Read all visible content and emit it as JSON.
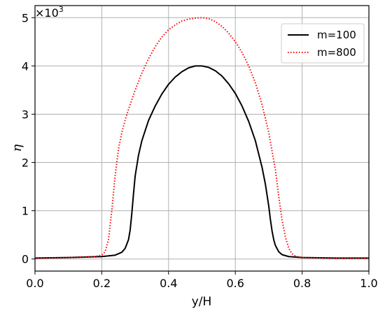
{
  "chart_data": {
    "type": "line",
    "xlabel": "y/H",
    "ylabel": "η",
    "y_multiplier": "×10",
    "y_multiplier_exp": "3",
    "xlim": [
      0.0,
      1.0
    ],
    "ylim": [
      -0.25,
      5.25
    ],
    "xticks": [
      0.0,
      0.2,
      0.4,
      0.6,
      0.8,
      1.0
    ],
    "xtick_labels": [
      "0.0",
      "0.2",
      "0.4",
      "0.6",
      "0.8",
      "1.0"
    ],
    "yticks": [
      0,
      1,
      2,
      3,
      4,
      5
    ],
    "ytick_labels": [
      "0",
      "1",
      "2",
      "3",
      "4",
      "5"
    ],
    "grid": true,
    "legend_position": "top-right",
    "series": [
      {
        "name": "m=100",
        "color": "#000000",
        "style": "solid",
        "x": [
          0.0,
          0.1,
          0.2,
          0.24,
          0.26,
          0.27,
          0.28,
          0.285,
          0.29,
          0.295,
          0.3,
          0.31,
          0.32,
          0.34,
          0.36,
          0.38,
          0.4,
          0.42,
          0.44,
          0.46,
          0.48,
          0.5,
          0.52,
          0.54,
          0.56,
          0.58,
          0.6,
          0.62,
          0.64,
          0.66,
          0.68,
          0.69,
          0.7,
          0.705,
          0.71,
          0.715,
          0.72,
          0.73,
          0.74,
          0.76,
          0.8,
          0.9,
          1.0
        ],
        "y": [
          0.02,
          0.03,
          0.05,
          0.08,
          0.14,
          0.22,
          0.4,
          0.6,
          0.95,
          1.35,
          1.72,
          2.15,
          2.45,
          2.87,
          3.17,
          3.42,
          3.62,
          3.77,
          3.88,
          3.96,
          4.0,
          4.0,
          3.97,
          3.9,
          3.79,
          3.63,
          3.43,
          3.17,
          2.85,
          2.45,
          1.9,
          1.55,
          1.1,
          0.82,
          0.58,
          0.4,
          0.28,
          0.15,
          0.09,
          0.05,
          0.03,
          0.02,
          0.02
        ]
      },
      {
        "name": "m=800",
        "color": "#ff0000",
        "style": "dotted",
        "x": [
          0.0,
          0.1,
          0.18,
          0.2,
          0.21,
          0.22,
          0.23,
          0.24,
          0.25,
          0.26,
          0.27,
          0.28,
          0.3,
          0.32,
          0.34,
          0.36,
          0.38,
          0.4,
          0.42,
          0.44,
          0.46,
          0.48,
          0.5,
          0.52,
          0.54,
          0.56,
          0.58,
          0.6,
          0.62,
          0.64,
          0.66,
          0.68,
          0.7,
          0.72,
          0.73,
          0.74,
          0.75,
          0.76,
          0.77,
          0.78,
          0.8,
          0.9,
          1.0
        ],
        "y": [
          0.02,
          0.03,
          0.05,
          0.08,
          0.15,
          0.4,
          1.0,
          1.72,
          2.28,
          2.62,
          2.88,
          3.1,
          3.5,
          3.85,
          4.15,
          4.4,
          4.6,
          4.75,
          4.85,
          4.93,
          4.97,
          4.99,
          5.0,
          4.98,
          4.92,
          4.82,
          4.68,
          4.5,
          4.28,
          4.0,
          3.65,
          3.2,
          2.62,
          1.85,
          1.3,
          0.8,
          0.45,
          0.22,
          0.11,
          0.06,
          0.03,
          0.02,
          0.02
        ]
      }
    ]
  }
}
